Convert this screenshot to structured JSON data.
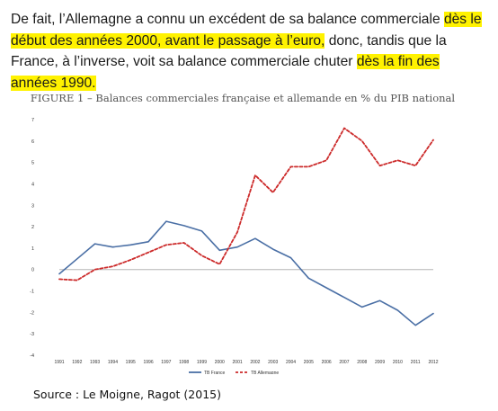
{
  "paragraph": {
    "part1": "De fait, l’Allemagne a connu un excédent de sa balance commerciale ",
    "hl1": "dès le début des années 2000, avant le passage à l’euro,",
    "part2": " donc, tandis que la France, à l’inverse, voit sa balance commerciale chuter ",
    "hl2": "dès la fin des années 1990.",
    "highlight_color": "#fff200"
  },
  "chart_data": {
    "type": "line",
    "title": "FIGURE 1 – Balances commerciales française et allemande en % du PIB national",
    "x": [
      1991,
      1992,
      1993,
      1994,
      1995,
      1996,
      1997,
      1998,
      1999,
      2000,
      2001,
      2002,
      2003,
      2004,
      2005,
      2006,
      2007,
      2008,
      2009,
      2010,
      2011,
      2012
    ],
    "ylim": [
      -4,
      7
    ],
    "yticks": [
      "7",
      "6",
      "5",
      "4",
      "3",
      "2",
      "1",
      "0",
      "-1",
      "-2",
      "-3",
      "-4"
    ],
    "grid": false,
    "legend_position": "bottom",
    "series": [
      {
        "name": "TB France",
        "color": "#4a6fa5",
        "dash": "solid",
        "values": [
          -0.2,
          0.5,
          1.2,
          1.05,
          1.15,
          1.3,
          2.25,
          2.05,
          1.8,
          0.9,
          1.05,
          1.45,
          0.95,
          0.55,
          -0.4,
          -0.85,
          -1.3,
          -1.75,
          -1.45,
          -1.9,
          -2.6,
          -2.05
        ]
      },
      {
        "name": "TB Allemagne",
        "color": "#cc2a2a",
        "dash": "dashed",
        "values": [
          -0.45,
          -0.5,
          0.0,
          0.15,
          0.45,
          0.8,
          1.15,
          1.25,
          0.65,
          0.25,
          1.75,
          4.4,
          3.6,
          4.8,
          4.8,
          5.1,
          6.6,
          6.0,
          4.85,
          5.1,
          4.85,
          6.05
        ]
      }
    ]
  },
  "source": "Source : Le Moigne, Ragot (2015)"
}
